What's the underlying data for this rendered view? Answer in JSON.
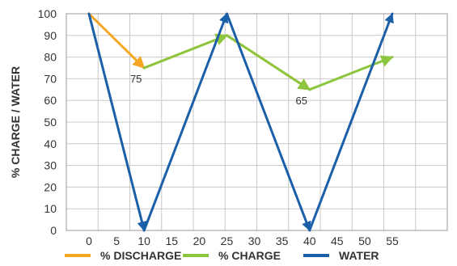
{
  "chart_data": {
    "type": "line",
    "title": "",
    "xlabel": "",
    "ylabel": "% CHARGE / WATER",
    "ylim": [
      0,
      100
    ],
    "yticks": [
      "0",
      "10",
      "20",
      "30",
      "40",
      "50",
      "60",
      "70",
      "80",
      "90",
      "100"
    ],
    "xticks": [
      "0",
      "5",
      "10",
      "15",
      "20",
      "25",
      "30",
      "35",
      "40",
      "45",
      "50",
      "55"
    ],
    "grid": true,
    "legend_position": "bottom",
    "series": [
      {
        "name": "% DISCHARGE",
        "color": "#f5a623",
        "points": [
          [
            0,
            100
          ],
          [
            10,
            75
          ],
          [
            25,
            90
          ],
          [
            40,
            65
          ]
        ]
      },
      {
        "name": "% CHARGE",
        "color": "#8cc63f",
        "points": [
          [
            10,
            75
          ],
          [
            25,
            90
          ],
          [
            40,
            65
          ],
          [
            55,
            80
          ]
        ]
      },
      {
        "name": "WATER",
        "color": "#1a5fa8",
        "points": [
          [
            0,
            100
          ],
          [
            10,
            0
          ],
          [
            25,
            100
          ],
          [
            40,
            0
          ],
          [
            55,
            100
          ]
        ]
      }
    ],
    "annotations": [
      {
        "text": "75",
        "x": 10,
        "y": 75
      },
      {
        "text": "65",
        "x": 40,
        "y": 65
      }
    ]
  }
}
